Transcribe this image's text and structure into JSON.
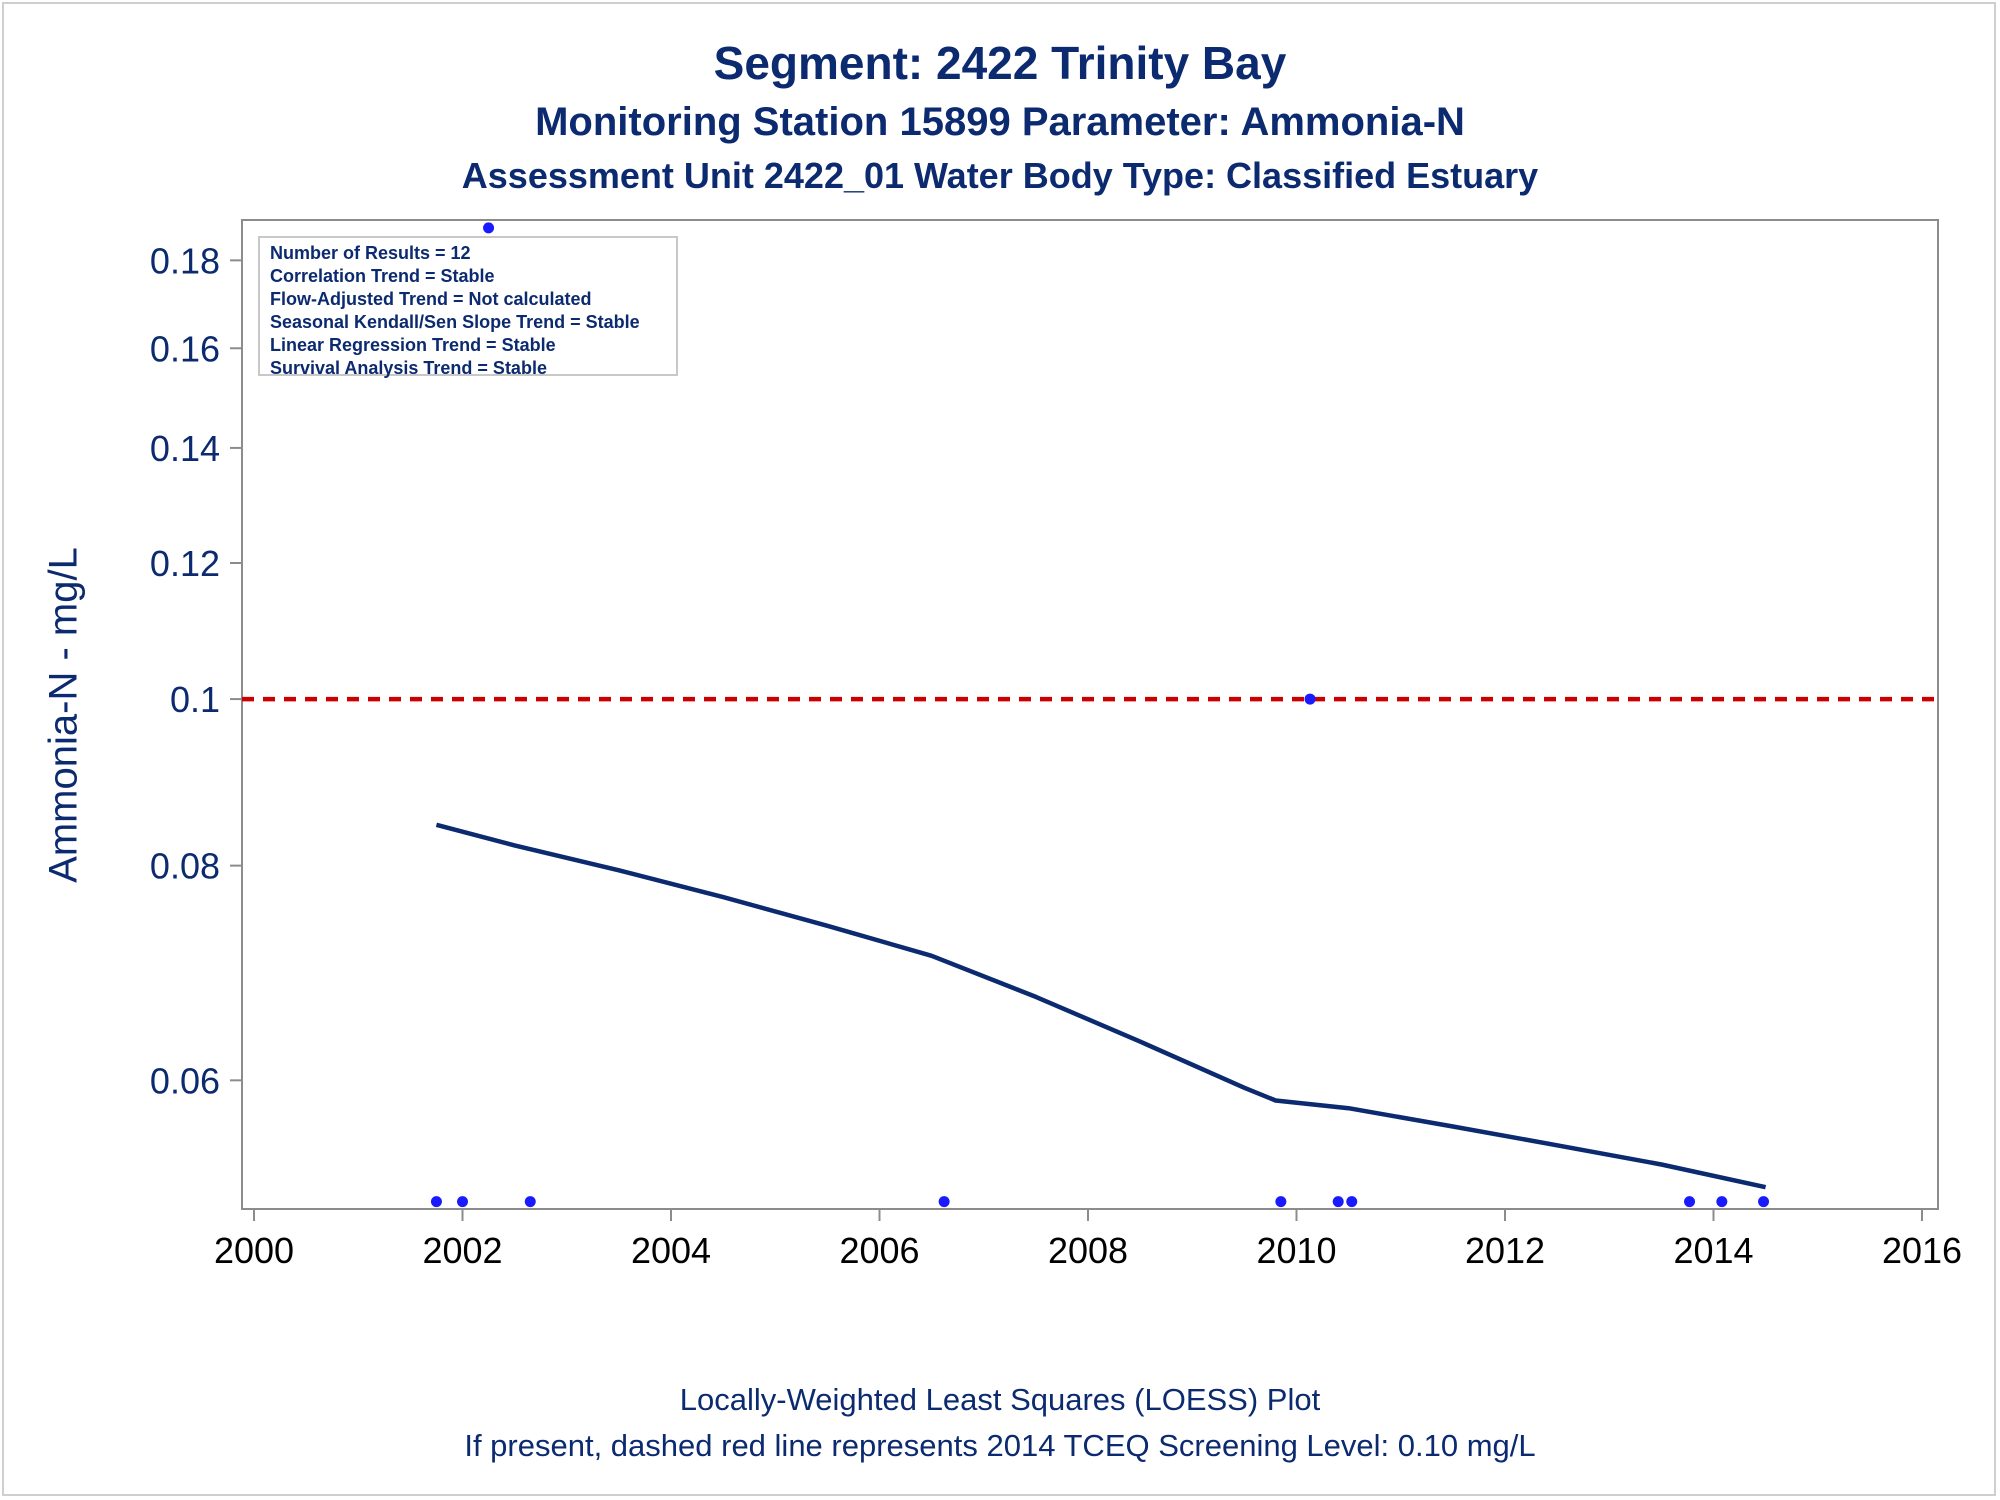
{
  "titles": {
    "line1": "Segment: 2422  Trinity Bay",
    "line2": "Monitoring Station 15899 Parameter: Ammonia-N",
    "line3": "Assessment Unit 2422_01   Water Body Type: Classified Estuary"
  },
  "footnotes": {
    "line1": "Locally-Weighted Least Squares (LOESS) Plot",
    "line2": "If present, dashed red line represents 2014 TCEQ Screening Level: 0.10 mg/L"
  },
  "stats_box": [
    "Number of Results = 12",
    "Correlation Trend = Stable",
    "Flow-Adjusted Trend = Not calculated",
    "Seasonal Kendall/Sen Slope Trend = Stable",
    "Linear Regression Trend = Stable",
    "Survival Analysis Trend = Stable"
  ],
  "colors": {
    "text": "#0b2a6f",
    "loess_line": "#0b2a6f",
    "points": "#1a1aff",
    "screening_line": "#cc0000",
    "axis": "#8c8c8c"
  },
  "chart_data": {
    "type": "scatter",
    "ylabel": "Ammonia-N - mg/L",
    "xlabel": "",
    "xlim": [
      2000,
      2016
    ],
    "x_ticks": [
      "2000",
      "2002",
      "2004",
      "2006",
      "2008",
      "2010",
      "2012",
      "2014",
      "2016"
    ],
    "y_ticks": [
      "0.06",
      "0.08",
      "0.1",
      "0.12",
      "0.14",
      "0.16",
      "0.18"
    ],
    "y_scale": "log",
    "ylim": [
      0.0505,
      0.19
    ],
    "grid": false,
    "series": [
      {
        "type": "scatter",
        "points": [
          {
            "x": 2001.75,
            "y": 0.051
          },
          {
            "x": 2002.0,
            "y": 0.051
          },
          {
            "x": 2002.65,
            "y": 0.051
          },
          {
            "x": 2006.62,
            "y": 0.051
          },
          {
            "x": 2009.85,
            "y": 0.051
          },
          {
            "x": 2010.13,
            "y": 0.1
          },
          {
            "x": 2010.4,
            "y": 0.051
          },
          {
            "x": 2010.53,
            "y": 0.051
          },
          {
            "x": 2013.77,
            "y": 0.051
          },
          {
            "x": 2014.08,
            "y": 0.051
          },
          {
            "x": 2014.48,
            "y": 0.051
          },
          {
            "x": 2002.25,
            "y": 0.188
          }
        ]
      },
      {
        "type": "line",
        "points": [
          {
            "x": 2001.75,
            "y": 0.0845
          },
          {
            "x": 2002.5,
            "y": 0.0822
          },
          {
            "x": 2003.5,
            "y": 0.0795
          },
          {
            "x": 2004.5,
            "y": 0.0767
          },
          {
            "x": 2005.5,
            "y": 0.0738
          },
          {
            "x": 2006.5,
            "y": 0.0709
          },
          {
            "x": 2007.5,
            "y": 0.0671
          },
          {
            "x": 2008.5,
            "y": 0.0632
          },
          {
            "x": 2009.5,
            "y": 0.0594
          },
          {
            "x": 2009.8,
            "y": 0.0584
          },
          {
            "x": 2010.5,
            "y": 0.0578
          },
          {
            "x": 2011.5,
            "y": 0.0564
          },
          {
            "x": 2012.5,
            "y": 0.055
          },
          {
            "x": 2013.5,
            "y": 0.0536
          },
          {
            "x": 2014.5,
            "y": 0.052
          }
        ]
      }
    ],
    "reference_line": {
      "y": 0.1,
      "style": "dashed"
    }
  }
}
